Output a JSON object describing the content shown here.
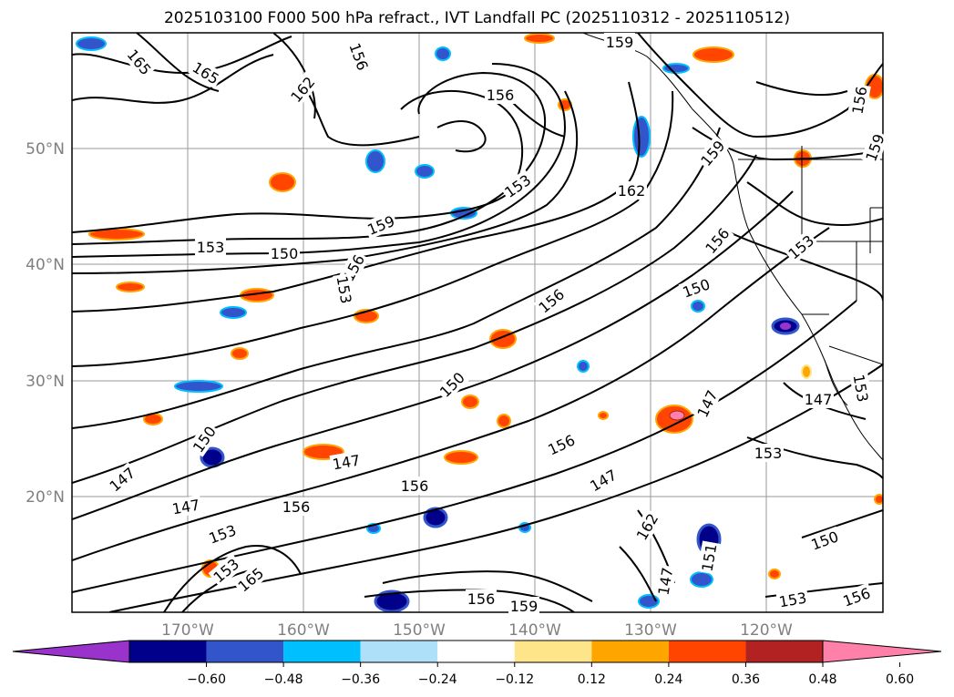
{
  "title": "2025103100 F000 500 hPa refract., IVT Landfall PC (2025110312 - 2025110512)",
  "map": {
    "lon_labels": [
      "170°W",
      "160°W",
      "150°W",
      "140°W",
      "130°W",
      "120°W"
    ],
    "lat_labels": [
      "50°N",
      "40°N",
      "30°N",
      "20°N"
    ],
    "contour_labels": [
      {
        "text": "165"
      },
      {
        "text": "165"
      },
      {
        "text": "162"
      },
      {
        "text": "156"
      },
      {
        "text": "159"
      },
      {
        "text": "156"
      },
      {
        "text": "153"
      },
      {
        "text": "162"
      },
      {
        "text": "159"
      },
      {
        "text": "156"
      },
      {
        "text": "153"
      },
      {
        "text": "150"
      },
      {
        "text": "153"
      },
      {
        "text": "159"
      },
      {
        "text": "156"
      },
      {
        "text": "156"
      },
      {
        "text": "153"
      },
      {
        "text": "150"
      },
      {
        "text": "150"
      },
      {
        "text": "156"
      },
      {
        "text": "150"
      },
      {
        "text": "147"
      },
      {
        "text": "147"
      },
      {
        "text": "147"
      },
      {
        "text": "147"
      },
      {
        "text": "156"
      },
      {
        "text": "147"
      },
      {
        "text": "153"
      },
      {
        "text": "156"
      },
      {
        "text": "147"
      },
      {
        "text": "153"
      },
      {
        "text": "153"
      },
      {
        "text": "165"
      },
      {
        "text": "147"
      },
      {
        "text": "151"
      },
      {
        "text": "150"
      },
      {
        "text": "156"
      },
      {
        "text": "159"
      },
      {
        "text": "153"
      },
      {
        "text": "156"
      },
      {
        "text": "162"
      },
      {
        "text": "156"
      },
      {
        "text": "159"
      },
      {
        "text": "153"
      }
    ]
  },
  "colorbar": {
    "colors": [
      "#9933cc",
      "#00008b",
      "#3355cc",
      "#00bfff",
      "#aee0fa",
      "#ffffff",
      "#ffe58a",
      "#ffa500",
      "#ff4500",
      "#b22222",
      "#ff80a8"
    ],
    "tick_labels": [
      "−0.60",
      "−0.48",
      "−0.36",
      "−0.24",
      "−0.12",
      "0.12",
      "0.24",
      "0.36",
      "0.48",
      "0.60"
    ]
  }
}
